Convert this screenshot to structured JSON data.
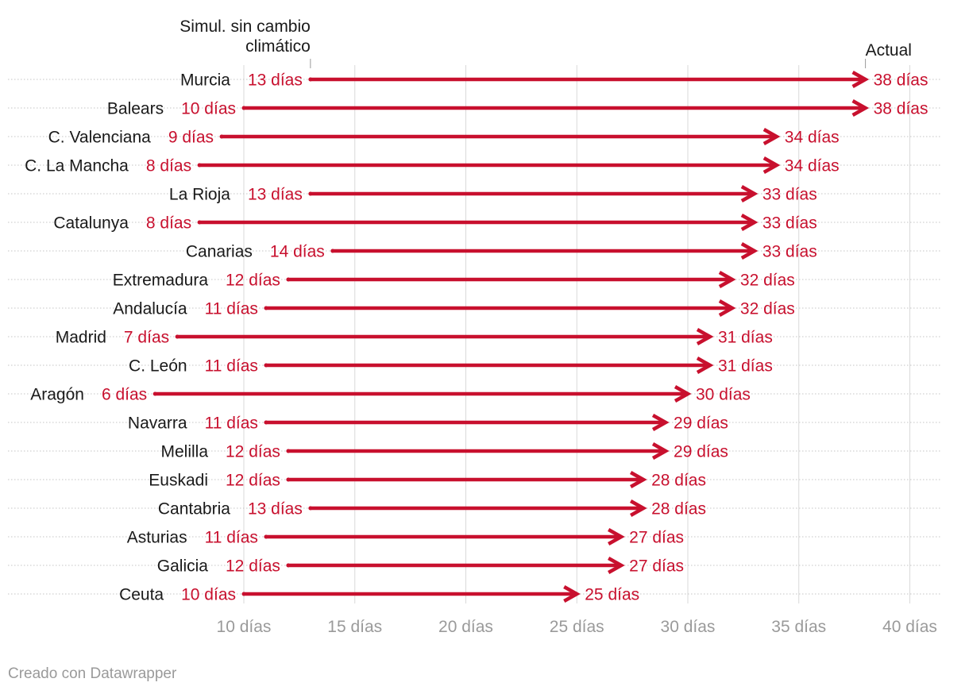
{
  "chart_data": {
    "type": "arrow",
    "unit": "días",
    "xlim": [
      10,
      40
    ],
    "x_ticks": [
      10,
      15,
      20,
      25,
      30,
      35,
      40
    ],
    "x_tick_labels": [
      "10 días",
      "15 días",
      "20 días",
      "25 días",
      "30 días",
      "35 días",
      "40 días"
    ],
    "start_series_name": "Simul. sin cambio climático",
    "start_annotation_lines": [
      "Simul. sin cambio",
      "climático"
    ],
    "end_series_name": "Actual",
    "colors": {
      "arrow": "#c8102e",
      "grid": "#d9d9d9",
      "row_dots": "#c4c4c4"
    },
    "rows": [
      {
        "region": "Murcia",
        "start": 13,
        "end": 38,
        "start_label": "13 días",
        "end_label": "38 días"
      },
      {
        "region": "Balears",
        "start": 10,
        "end": 38,
        "start_label": "10 días",
        "end_label": "38 días"
      },
      {
        "region": "C. Valenciana",
        "start": 9,
        "end": 34,
        "start_label": "9 días",
        "end_label": "34 días"
      },
      {
        "region": "C. La Mancha",
        "start": 8,
        "end": 34,
        "start_label": "8 días",
        "end_label": "34 días"
      },
      {
        "region": "La Rioja",
        "start": 13,
        "end": 33,
        "start_label": "13 días",
        "end_label": "33 días"
      },
      {
        "region": "Catalunya",
        "start": 8,
        "end": 33,
        "start_label": "8 días",
        "end_label": "33 días"
      },
      {
        "region": "Canarias",
        "start": 14,
        "end": 33,
        "start_label": "14 días",
        "end_label": "33 días"
      },
      {
        "region": "Extremadura",
        "start": 12,
        "end": 32,
        "start_label": "12 días",
        "end_label": "32 días"
      },
      {
        "region": "Andalucía",
        "start": 11,
        "end": 32,
        "start_label": "11 días",
        "end_label": "32 días"
      },
      {
        "region": "Madrid",
        "start": 7,
        "end": 31,
        "start_label": "7 días",
        "end_label": "31 días"
      },
      {
        "region": "C. León",
        "start": 11,
        "end": 31,
        "start_label": "11 días",
        "end_label": "31 días"
      },
      {
        "region": "Aragón",
        "start": 6,
        "end": 30,
        "start_label": "6 días",
        "end_label": "30 días"
      },
      {
        "region": "Navarra",
        "start": 11,
        "end": 29,
        "start_label": "11 días",
        "end_label": "29 días"
      },
      {
        "region": "Melilla",
        "start": 12,
        "end": 29,
        "start_label": "12 días",
        "end_label": "29 días"
      },
      {
        "region": "Euskadi",
        "start": 12,
        "end": 28,
        "start_label": "12 días",
        "end_label": "28 días"
      },
      {
        "region": "Cantabria",
        "start": 13,
        "end": 28,
        "start_label": "13 días",
        "end_label": "28 días"
      },
      {
        "region": "Asturias",
        "start": 11,
        "end": 27,
        "start_label": "11 días",
        "end_label": "27 días"
      },
      {
        "region": "Galicia",
        "start": 12,
        "end": 27,
        "start_label": "12 días",
        "end_label": "27 días"
      },
      {
        "region": "Ceuta",
        "start": 10,
        "end": 25,
        "start_label": "10 días",
        "end_label": "25 días"
      }
    ]
  },
  "footer": {
    "credit": "Creado con Datawrapper"
  }
}
